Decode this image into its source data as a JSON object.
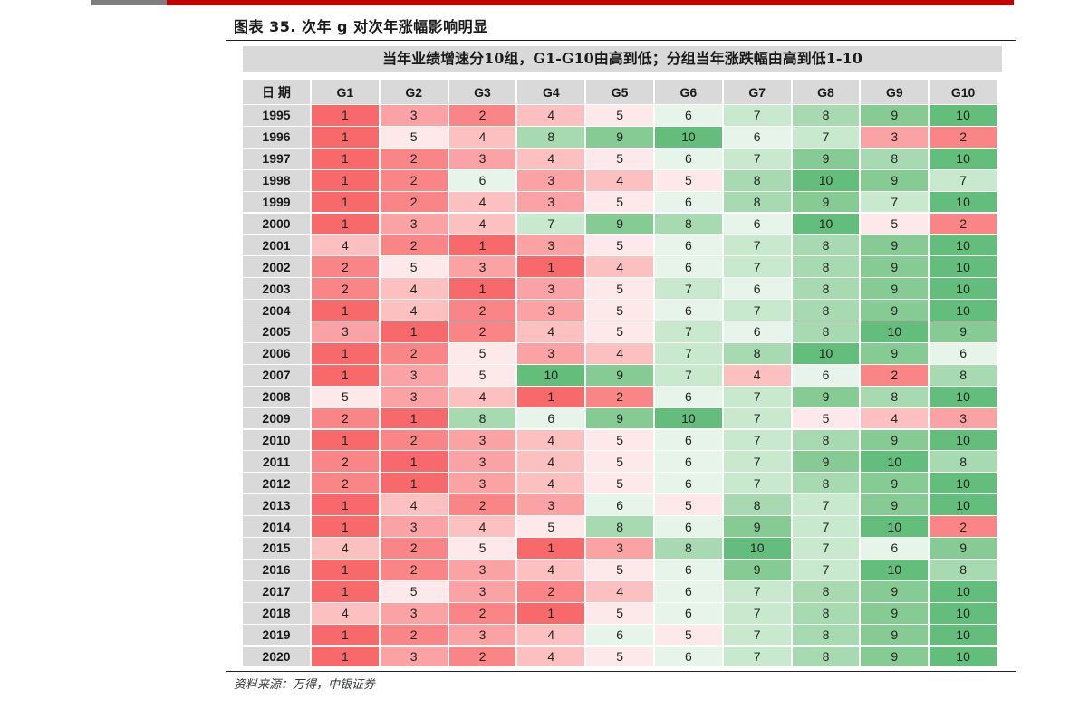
{
  "figure_title": "图表 35. 次年 g 对次年涨幅影响明显",
  "source": "资料来源：万得，中银证券",
  "chart_data": {
    "type": "heatmap",
    "title": "当年业绩增速分10组，G1-G10由高到低；分组当年涨跌幅由高到低1-10",
    "row_header": "日 期",
    "columns": [
      "G1",
      "G2",
      "G3",
      "G4",
      "G5",
      "G6",
      "G7",
      "G8",
      "G9",
      "G10"
    ],
    "rows": [
      "1995",
      "1996",
      "1997",
      "1998",
      "1999",
      "2000",
      "2001",
      "2002",
      "2003",
      "2004",
      "2005",
      "2006",
      "2007",
      "2008",
      "2009",
      "2010",
      "2011",
      "2012",
      "2013",
      "2014",
      "2015",
      "2016",
      "2017",
      "2018",
      "2019",
      "2020"
    ],
    "values": [
      [
        1,
        3,
        2,
        4,
        5,
        6,
        7,
        8,
        9,
        10
      ],
      [
        1,
        5,
        4,
        8,
        9,
        10,
        6,
        7,
        3,
        2
      ],
      [
        1,
        2,
        3,
        4,
        5,
        6,
        7,
        9,
        8,
        10
      ],
      [
        1,
        2,
        6,
        3,
        4,
        5,
        8,
        10,
        9,
        7
      ],
      [
        1,
        2,
        4,
        3,
        5,
        6,
        8,
        9,
        7,
        10
      ],
      [
        1,
        3,
        4,
        7,
        9,
        8,
        6,
        10,
        5,
        2
      ],
      [
        4,
        2,
        1,
        3,
        5,
        6,
        7,
        8,
        9,
        10
      ],
      [
        2,
        5,
        3,
        1,
        4,
        6,
        7,
        8,
        9,
        10
      ],
      [
        2,
        4,
        1,
        3,
        5,
        7,
        6,
        8,
        9,
        10
      ],
      [
        1,
        4,
        2,
        3,
        5,
        6,
        7,
        8,
        9,
        10
      ],
      [
        3,
        1,
        2,
        4,
        5,
        7,
        6,
        8,
        10,
        9
      ],
      [
        1,
        2,
        5,
        3,
        4,
        7,
        8,
        10,
        9,
        6
      ],
      [
        1,
        3,
        5,
        10,
        9,
        7,
        4,
        6,
        2,
        8
      ],
      [
        5,
        3,
        4,
        1,
        2,
        6,
        7,
        9,
        8,
        10
      ],
      [
        2,
        1,
        8,
        6,
        9,
        10,
        7,
        5,
        4,
        3
      ],
      [
        1,
        2,
        3,
        4,
        5,
        6,
        7,
        8,
        9,
        10
      ],
      [
        2,
        1,
        3,
        4,
        5,
        6,
        7,
        9,
        10,
        8
      ],
      [
        2,
        1,
        3,
        4,
        5,
        6,
        7,
        8,
        9,
        10
      ],
      [
        1,
        4,
        2,
        3,
        6,
        5,
        8,
        7,
        9,
        10
      ],
      [
        1,
        3,
        4,
        5,
        8,
        6,
        9,
        7,
        10,
        2
      ],
      [
        4,
        2,
        5,
        1,
        3,
        8,
        10,
        7,
        6,
        9
      ],
      [
        1,
        2,
        3,
        4,
        5,
        6,
        9,
        7,
        10,
        8
      ],
      [
        1,
        5,
        3,
        2,
        4,
        6,
        7,
        8,
        9,
        10
      ],
      [
        4,
        3,
        2,
        1,
        5,
        6,
        7,
        8,
        9,
        10
      ],
      [
        1,
        2,
        3,
        4,
        6,
        5,
        7,
        8,
        9,
        10
      ],
      [
        1,
        3,
        2,
        4,
        5,
        6,
        7,
        8,
        9,
        10
      ]
    ],
    "color_scale": {
      "1": "#f8696b",
      "2": "#f98587",
      "3": "#fba2a4",
      "4": "#fcc0c1",
      "5": "#fde9ea",
      "6": "#e7f4e9",
      "7": "#c9e9cf",
      "8": "#a7dab1",
      "9": "#86cb93",
      "10": "#63be7b"
    }
  }
}
